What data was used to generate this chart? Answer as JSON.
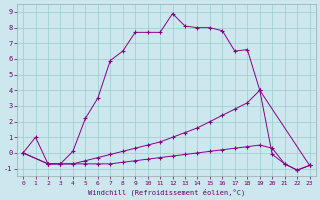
{
  "xlabel": "Windchill (Refroidissement éolien,°C)",
  "bg_color": "#cce8ee",
  "grid_color": "#99cccc",
  "line_color": "#880088",
  "xlim": [
    -0.5,
    23.5
  ],
  "ylim": [
    -1.5,
    9.5
  ],
  "xticks": [
    0,
    1,
    2,
    3,
    4,
    5,
    6,
    7,
    8,
    9,
    10,
    11,
    12,
    13,
    14,
    15,
    16,
    17,
    18,
    19,
    20,
    21,
    22,
    23
  ],
  "yticks": [
    -1,
    0,
    1,
    2,
    3,
    4,
    5,
    6,
    7,
    8,
    9
  ],
  "curve1_x": [
    0,
    1,
    2,
    3,
    4,
    5,
    6,
    7,
    8,
    9,
    10,
    11,
    12,
    13,
    14,
    15,
    16,
    17,
    18,
    19,
    20,
    21,
    22,
    23
  ],
  "curve1_y": [
    0.0,
    1.0,
    -0.7,
    -0.7,
    0.1,
    2.2,
    3.5,
    5.9,
    6.5,
    7.7,
    7.7,
    7.7,
    8.9,
    8.1,
    8.0,
    8.0,
    7.8,
    6.5,
    6.6,
    4.0,
    -0.1,
    -0.7,
    -1.1,
    -0.8
  ],
  "curve2_x": [
    0,
    2,
    3,
    4,
    5,
    6,
    7,
    8,
    9,
    10,
    11,
    12,
    13,
    14,
    15,
    16,
    17,
    18,
    19,
    23
  ],
  "curve2_y": [
    0.0,
    -0.7,
    -0.7,
    -0.7,
    -0.5,
    -0.3,
    -0.1,
    0.1,
    0.3,
    0.5,
    0.7,
    1.0,
    1.3,
    1.6,
    2.0,
    2.4,
    2.8,
    3.2,
    4.0,
    -0.8
  ],
  "curve3_x": [
    0,
    2,
    3,
    4,
    5,
    6,
    7,
    8,
    9,
    10,
    11,
    12,
    13,
    14,
    15,
    16,
    17,
    18,
    19,
    20,
    21,
    22,
    23
  ],
  "curve3_y": [
    0.0,
    -0.7,
    -0.7,
    -0.7,
    -0.7,
    -0.7,
    -0.7,
    -0.6,
    -0.5,
    -0.4,
    -0.3,
    -0.2,
    -0.1,
    0.0,
    0.1,
    0.2,
    0.3,
    0.4,
    0.5,
    0.3,
    -0.7,
    -1.1,
    -0.8
  ]
}
